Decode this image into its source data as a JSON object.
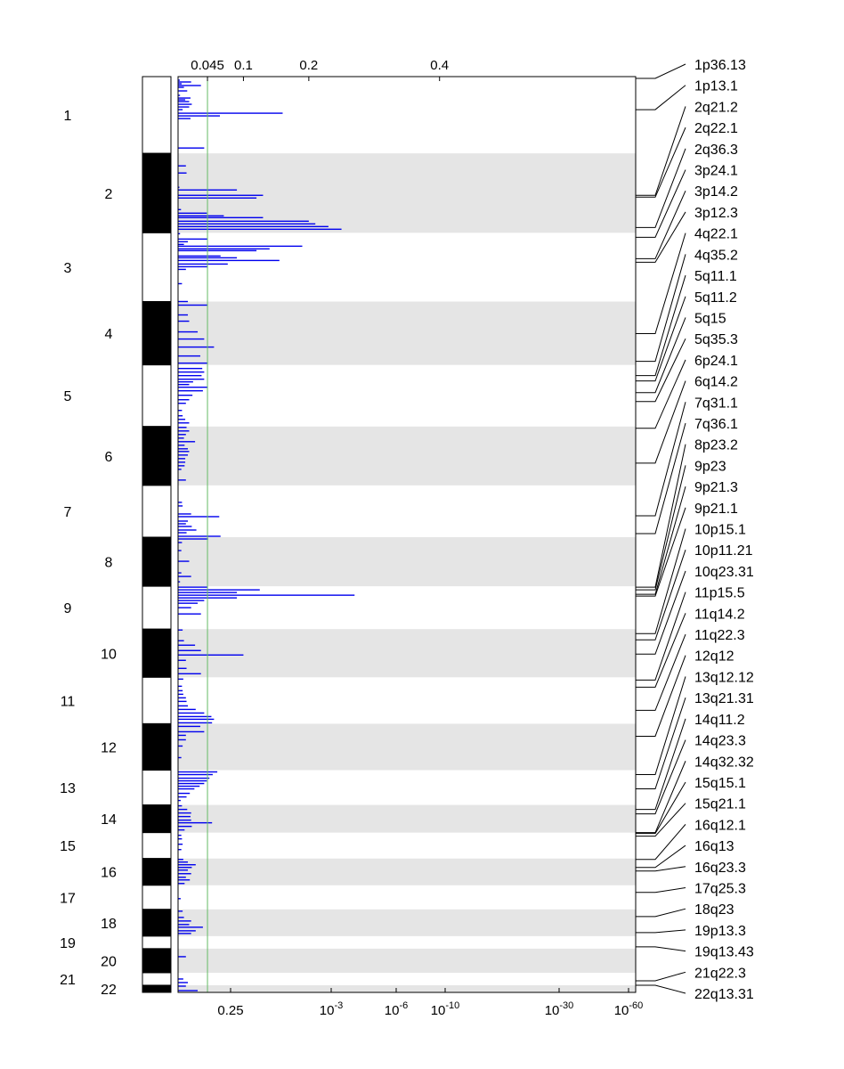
{
  "chart_data": {
    "type": "bar",
    "orientation": "horizontal",
    "title": "",
    "xlabel": "",
    "ylabel": "",
    "top_axis": {
      "ticks": [
        {
          "label": "0.045",
          "value": 0.045
        },
        {
          "label": "0.1",
          "value": 0.1
        },
        {
          "label": "0.2",
          "value": 0.2
        },
        {
          "label": "0.4",
          "value": 0.4
        }
      ],
      "xlim": [
        0,
        0.7
      ]
    },
    "bottom_axis": {
      "ticks": [
        {
          "label": "0.25",
          "base": "",
          "exp": "",
          "neglog10": 0.6
        },
        {
          "label": "10",
          "base": "10",
          "exp": "-3",
          "neglog10": 3
        },
        {
          "label": "10",
          "base": "10",
          "exp": "-6",
          "neglog10": 6
        },
        {
          "label": "10",
          "base": "10",
          "exp": "-10",
          "neglog10": 10
        },
        {
          "label": "10",
          "base": "10",
          "exp": "-30",
          "neglog10": 30
        },
        {
          "label": "10",
          "base": "10",
          "exp": "-60",
          "neglog10": 60
        }
      ]
    },
    "threshold": {
      "top_value": 0.045,
      "bottom_label": "0.25",
      "color": "#66bb66"
    },
    "chromosomes": [
      {
        "label": "1",
        "span": [
          0,
          8.6
        ],
        "fill": "#ffffff"
      },
      {
        "label": "2",
        "span": [
          8.6,
          17.5
        ],
        "fill": "#000000"
      },
      {
        "label": "3",
        "span": [
          17.5,
          25.2
        ],
        "fill": "#ffffff"
      },
      {
        "label": "4",
        "span": [
          25.2,
          32.3
        ],
        "fill": "#000000"
      },
      {
        "label": "5",
        "span": [
          32.3,
          39.2
        ],
        "fill": "#ffffff"
      },
      {
        "label": "6",
        "span": [
          39.2,
          45.8
        ],
        "fill": "#000000"
      },
      {
        "label": "7",
        "span": [
          45.8,
          51.6
        ],
        "fill": "#ffffff"
      },
      {
        "label": "8",
        "span": [
          51.6,
          57.1
        ],
        "fill": "#000000"
      },
      {
        "label": "9",
        "span": [
          57.1,
          61.9
        ],
        "fill": "#ffffff"
      },
      {
        "label": "10",
        "span": [
          61.9,
          67.3
        ],
        "fill": "#000000"
      },
      {
        "label": "11",
        "span": [
          67.3,
          72.5
        ],
        "fill": "#ffffff"
      },
      {
        "label": "12",
        "span": [
          72.5,
          77.7
        ],
        "fill": "#000000"
      },
      {
        "label": "13",
        "span": [
          77.7,
          81.6
        ],
        "fill": "#ffffff"
      },
      {
        "label": "14",
        "span": [
          81.6,
          84.7
        ],
        "fill": "#000000"
      },
      {
        "label": "15",
        "span": [
          84.7,
          87.6
        ],
        "fill": "#ffffff"
      },
      {
        "label": "16",
        "span": [
          87.6,
          90.6
        ],
        "fill": "#000000"
      },
      {
        "label": "17",
        "span": [
          90.6,
          93.3
        ],
        "fill": "#ffffff"
      },
      {
        "label": "18",
        "span": [
          93.3,
          96.3
        ],
        "fill": "#000000"
      },
      {
        "label": "19",
        "span": [
          96.3,
          97.7
        ],
        "fill": "#ffffff"
      },
      {
        "label": "20",
        "span": [
          97.7,
          100.4
        ],
        "fill": "#000000"
      },
      {
        "label": "21",
        "span": [
          100.4,
          101.8
        ],
        "fill": "#ffffff"
      },
      {
        "label": "22",
        "span": [
          101.8,
          102.6
        ],
        "fill": "#000000"
      }
    ],
    "band_labels": [
      "1p36.13",
      "1p13.1",
      "2q21.2",
      "2q22.1",
      "2q36.3",
      "3p24.1",
      "3p14.2",
      "3p12.3",
      "4q22.1",
      "4q35.2",
      "5q11.1",
      "5q11.2",
      "5q15",
      "5q35.3",
      "6p24.1",
      "6q14.2",
      "7q31.1",
      "7q36.1",
      "8p23.2",
      "9p23",
      "9p21.3",
      "9p21.1",
      "10p15.1",
      "10p11.21",
      "10q23.31",
      "11p15.5",
      "11q14.2",
      "11q22.3",
      "12q12",
      "13q12.12",
      "13q21.31",
      "14q11.2",
      "14q23.3",
      "14q32.32",
      "15q15.1",
      "15q21.1",
      "16q12.1",
      "16q13",
      "16q23.3",
      "17q25.3",
      "18q23",
      "19p13.3",
      "19q13.43",
      "21q22.3",
      "22q13.31"
    ],
    "band_positions": [
      0.2,
      3.7,
      13.3,
      13.5,
      16.9,
      18.0,
      20.4,
      20.8,
      28.8,
      31.9,
      33.5,
      34.1,
      35.4,
      36.4,
      39.4,
      43.3,
      49.2,
      51.2,
      57.2,
      57.5,
      58.0,
      58.2,
      62.4,
      63.1,
      64.7,
      67.6,
      68.4,
      71.0,
      73.9,
      78.2,
      79.8,
      82.1,
      82.6,
      84.7,
      84.8,
      85.1,
      87.7,
      88.6,
      89.0,
      91.4,
      94.1,
      95.9,
      97.5,
      101.3,
      101.8
    ],
    "bars": [
      [
        0.4,
        0.0027
      ],
      [
        0.6,
        0.02
      ],
      [
        0.8,
        0.0055
      ],
      [
        1.0,
        0.035
      ],
      [
        1.2,
        0.009
      ],
      [
        1.6,
        0.014
      ],
      [
        2.1,
        0.003
      ],
      [
        2.4,
        0.019
      ],
      [
        2.6,
        0.011
      ],
      [
        2.8,
        0.017
      ],
      [
        3.1,
        0.021
      ],
      [
        3.4,
        0.017
      ],
      [
        3.7,
        0.007
      ],
      [
        4.1,
        0.16
      ],
      [
        4.4,
        0.064
      ],
      [
        4.7,
        0.019
      ],
      [
        8.0,
        0.04
      ],
      [
        10.0,
        0.012
      ],
      [
        10.8,
        0.013
      ],
      [
        12.4,
        0.002
      ],
      [
        12.7,
        0.09
      ],
      [
        13.3,
        0.13
      ],
      [
        13.6,
        0.12
      ],
      [
        14.9,
        0.0045
      ],
      [
        15.3,
        0.044
      ],
      [
        15.6,
        0.07
      ],
      [
        15.8,
        0.13
      ],
      [
        16.2,
        0.2
      ],
      [
        16.5,
        0.21
      ],
      [
        16.8,
        0.23
      ],
      [
        17.1,
        0.25
      ],
      [
        17.6,
        0.003
      ],
      [
        18.2,
        0.045
      ],
      [
        18.5,
        0.015
      ],
      [
        18.8,
        0.009
      ],
      [
        19.0,
        0.19
      ],
      [
        19.3,
        0.14
      ],
      [
        19.5,
        0.12
      ],
      [
        20.1,
        0.065
      ],
      [
        20.3,
        0.09
      ],
      [
        20.6,
        0.155
      ],
      [
        21.0,
        0.076
      ],
      [
        21.3,
        0.045
      ],
      [
        21.6,
        0.012
      ],
      [
        23.2,
        0.006
      ],
      [
        25.2,
        0.015
      ],
      [
        25.6,
        0.045
      ],
      [
        26.7,
        0.015
      ],
      [
        27.4,
        0.017
      ],
      [
        28.6,
        0.03
      ],
      [
        29.4,
        0.04
      ],
      [
        30.3,
        0.055
      ],
      [
        31.3,
        0.034
      ],
      [
        32.1,
        0.045
      ],
      [
        32.7,
        0.037
      ],
      [
        33.1,
        0.04
      ],
      [
        33.5,
        0.036
      ],
      [
        33.9,
        0.04
      ],
      [
        34.2,
        0.023
      ],
      [
        34.5,
        0.017
      ],
      [
        34.8,
        0.045
      ],
      [
        35.2,
        0.038
      ],
      [
        35.7,
        0.022
      ],
      [
        36.2,
        0.017
      ],
      [
        36.6,
        0.012
      ],
      [
        37.4,
        0.006
      ],
      [
        38.0,
        0.007
      ],
      [
        38.4,
        0.011
      ],
      [
        38.8,
        0.017
      ],
      [
        39.3,
        0.013
      ],
      [
        39.7,
        0.017
      ],
      [
        40.1,
        0.012
      ],
      [
        40.5,
        0.009
      ],
      [
        40.9,
        0.026
      ],
      [
        41.3,
        0.01
      ],
      [
        41.7,
        0.015
      ],
      [
        42.0,
        0.017
      ],
      [
        42.4,
        0.015
      ],
      [
        42.8,
        0.011
      ],
      [
        43.2,
        0.011
      ],
      [
        43.6,
        0.01
      ],
      [
        44.0,
        0.005
      ],
      [
        45.2,
        0.012
      ],
      [
        47.7,
        0.006
      ],
      [
        48.1,
        0.007
      ],
      [
        49.0,
        0.02
      ],
      [
        49.3,
        0.063
      ],
      [
        49.8,
        0.015
      ],
      [
        50.1,
        0.012
      ],
      [
        50.4,
        0.021
      ],
      [
        50.8,
        0.028
      ],
      [
        51.1,
        0.013
      ],
      [
        51.5,
        0.065
      ],
      [
        51.8,
        0.046
      ],
      [
        52.2,
        0.006
      ],
      [
        53.1,
        0.005
      ],
      [
        54.3,
        0.017
      ],
      [
        55.6,
        0.005
      ],
      [
        56.0,
        0.02
      ],
      [
        56.6,
        0.003
      ],
      [
        57.2,
        0.045
      ],
      [
        57.5,
        0.125
      ],
      [
        57.8,
        0.09
      ],
      [
        58.1,
        0.27
      ],
      [
        58.4,
        0.09
      ],
      [
        58.7,
        0.04
      ],
      [
        59.0,
        0.03
      ],
      [
        59.5,
        0.02
      ],
      [
        60.2,
        0.035
      ],
      [
        62.0,
        0.007
      ],
      [
        63.2,
        0.009
      ],
      [
        63.7,
        0.026
      ],
      [
        64.3,
        0.035
      ],
      [
        64.8,
        0.1
      ],
      [
        65.4,
        0.012
      ],
      [
        66.3,
        0.013
      ],
      [
        66.9,
        0.035
      ],
      [
        67.5,
        0.008
      ],
      [
        68.3,
        0.006
      ],
      [
        68.8,
        0.007
      ],
      [
        69.2,
        0.008
      ],
      [
        69.6,
        0.012
      ],
      [
        70.0,
        0.013
      ],
      [
        70.5,
        0.015
      ],
      [
        70.9,
        0.027
      ],
      [
        71.3,
        0.04
      ],
      [
        71.7,
        0.051
      ],
      [
        72.0,
        0.055
      ],
      [
        72.4,
        0.052
      ],
      [
        72.8,
        0.034
      ],
      [
        73.4,
        0.04
      ],
      [
        73.8,
        0.012
      ],
      [
        74.3,
        0.012
      ],
      [
        75.0,
        0.007
      ],
      [
        76.3,
        0.005
      ],
      [
        77.9,
        0.06
      ],
      [
        78.2,
        0.053
      ],
      [
        78.6,
        0.048
      ],
      [
        78.9,
        0.044
      ],
      [
        79.2,
        0.04
      ],
      [
        79.5,
        0.033
      ],
      [
        79.8,
        0.025
      ],
      [
        80.3,
        0.018
      ],
      [
        80.7,
        0.013
      ],
      [
        81.1,
        0.004
      ],
      [
        81.7,
        0.006
      ],
      [
        82.1,
        0.014
      ],
      [
        82.5,
        0.02
      ],
      [
        82.9,
        0.019
      ],
      [
        83.3,
        0.02
      ],
      [
        83.6,
        0.052
      ],
      [
        84.0,
        0.021
      ],
      [
        84.4,
        0.01
      ],
      [
        85.0,
        0.005
      ],
      [
        85.4,
        0.006
      ],
      [
        86.0,
        0.007
      ],
      [
        86.6,
        0.005
      ],
      [
        87.7,
        0.008
      ],
      [
        88.0,
        0.015
      ],
      [
        88.3,
        0.027
      ],
      [
        88.6,
        0.021
      ],
      [
        88.9,
        0.015
      ],
      [
        89.3,
        0.02
      ],
      [
        89.7,
        0.012
      ],
      [
        90.0,
        0.018
      ],
      [
        90.4,
        0.01
      ],
      [
        92.1,
        0.004
      ],
      [
        93.5,
        0.007
      ],
      [
        94.2,
        0.009
      ],
      [
        94.6,
        0.02
      ],
      [
        95.0,
        0.017
      ],
      [
        95.3,
        0.038
      ],
      [
        95.7,
        0.027
      ],
      [
        96.0,
        0.02
      ],
      [
        98.6,
        0.012
      ],
      [
        101.1,
        0.008
      ],
      [
        101.5,
        0.015
      ],
      [
        101.9,
        0.012
      ],
      [
        102.4,
        0.03
      ]
    ],
    "bar_color": "#0000ee",
    "band_shade": "#e5e5e5"
  }
}
